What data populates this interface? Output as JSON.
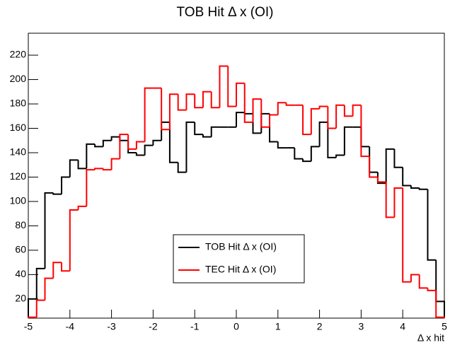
{
  "chart_data": {
    "type": "histogram",
    "title": "TOB Hit Δ x (OI)",
    "x_label": "Δ x hit",
    "bins": [
      -5,
      -4.8,
      -4.6,
      -4.4,
      -4.2,
      -4,
      -3.8,
      -3.6,
      -3.4,
      -3.2,
      -3,
      -2.8,
      -2.6,
      -2.4,
      -2.2,
      -2,
      -1.8,
      -1.6,
      -1.4,
      -1.2,
      -1,
      -0.8,
      -0.6,
      -0.4,
      -0.2,
      0,
      0.2,
      0.4,
      0.6,
      0.8,
      1,
      1.2,
      1.4,
      1.6,
      1.8,
      2,
      2.2,
      2.4,
      2.6,
      2.8,
      3,
      3.2,
      3.4,
      3.6,
      3.8,
      4,
      4.2,
      4.4,
      4.6,
      4.8,
      5
    ],
    "series": [
      {
        "name": "TOB Hit Δ x (OI)",
        "color": "#000000",
        "values": [
          20,
          45,
          107,
          106,
          120,
          134,
          127,
          147,
          145,
          150,
          153,
          150,
          140,
          138,
          146,
          150,
          165,
          132,
          124,
          165,
          155,
          153,
          161,
          161,
          161,
          173,
          172,
          156,
          172,
          149,
          144,
          144,
          135,
          133,
          145,
          165,
          136,
          138,
          161,
          161,
          145,
          124,
          115,
          143,
          128,
          113,
          111,
          110,
          52,
          18
        ]
      },
      {
        "name": "TEC Hit Δ x (OI)",
        "color": "#ff0000",
        "values": [
          5,
          19,
          37,
          50,
          43,
          93,
          96,
          126,
          127,
          126,
          135,
          155,
          143,
          149,
          193,
          193,
          159,
          188,
          175,
          188,
          177,
          190,
          177,
          211,
          178,
          197,
          165,
          184,
          161,
          171,
          181,
          179,
          179,
          155,
          176,
          178,
          160,
          179,
          170,
          179,
          137,
          120,
          116,
          87,
          111,
          34,
          40,
          29,
          27,
          5
        ]
      }
    ],
    "xlim": [
      -5,
      5
    ],
    "ylim": [
      4.3,
      238
    ],
    "xticks": [
      -5,
      -4,
      -3,
      -2,
      -1,
      0,
      1,
      2,
      3,
      4,
      5
    ],
    "yticks": [
      20,
      40,
      60,
      80,
      100,
      120,
      140,
      160,
      180,
      200,
      220
    ]
  }
}
